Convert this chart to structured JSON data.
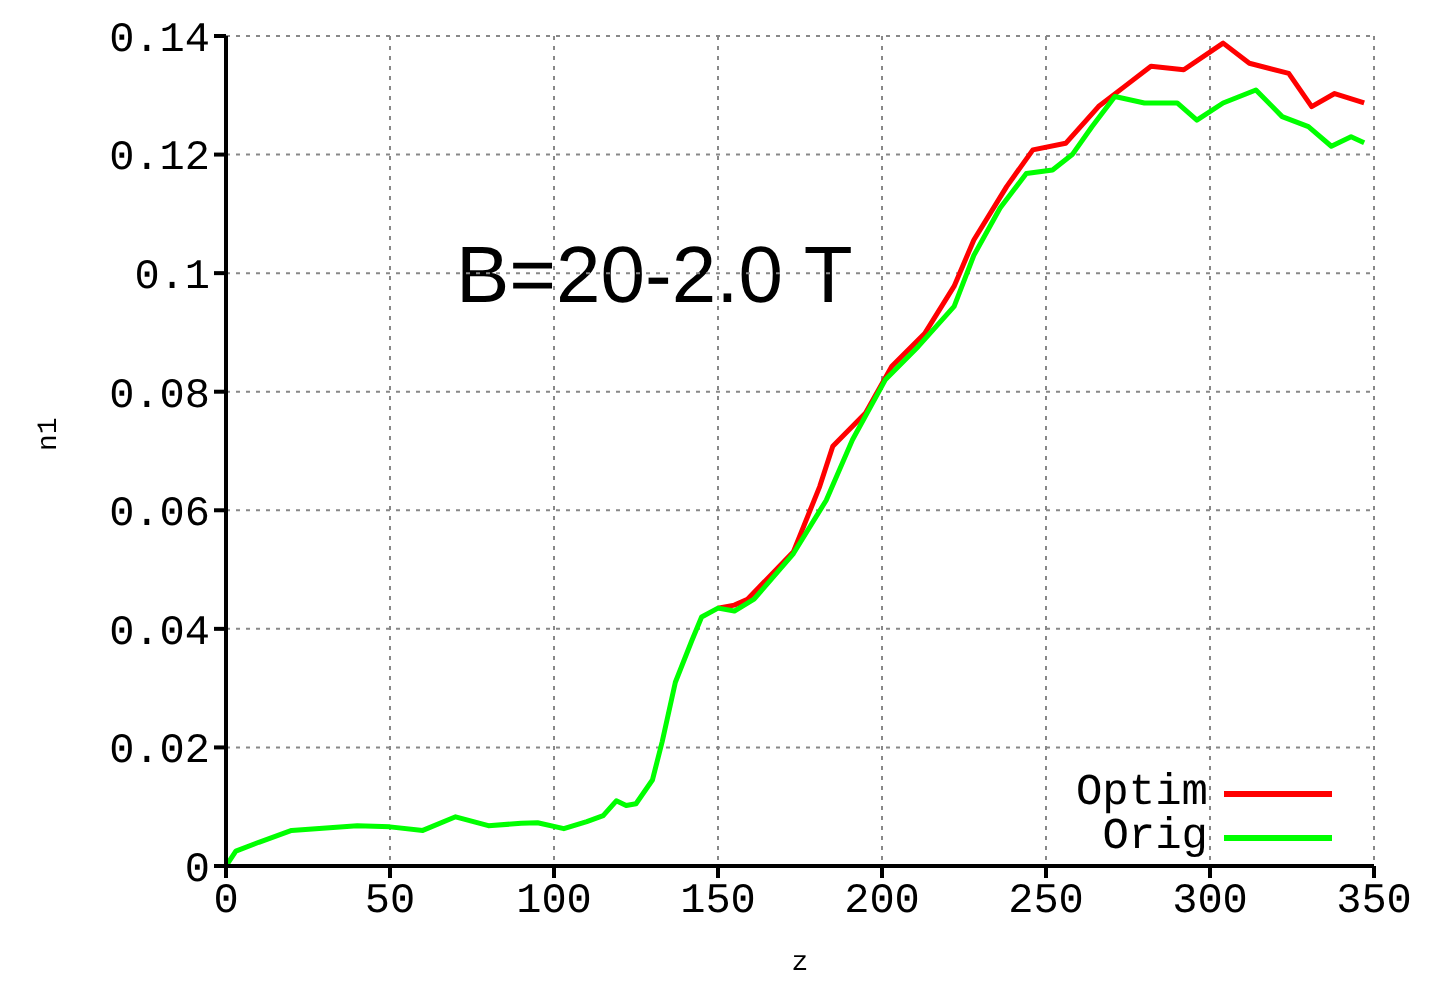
{
  "chart_data": {
    "type": "line",
    "xlabel": "z",
    "ylabel": "n1",
    "annotations": [
      "B=20-2.0 T"
    ],
    "xlim": [
      0,
      350
    ],
    "xticks": [
      0,
      50,
      100,
      150,
      200,
      250,
      300,
      350
    ],
    "ylim": [
      0,
      0.14
    ],
    "yticks": [
      0,
      0.02,
      0.04,
      0.06,
      0.08,
      0.1,
      0.12,
      0.14
    ],
    "grid": true,
    "legend": "bottom right",
    "marker": "none",
    "line_style": "solid",
    "series": [
      {
        "name": "Optim",
        "color": "#ff0000",
        "x": [
          150,
          155,
          159,
          173,
          181,
          185,
          195,
          203,
          213,
          222,
          228,
          238,
          246,
          256,
          266,
          274,
          282,
          292,
          304,
          312,
          324,
          331,
          338,
          347
        ],
        "values": [
          0.0435,
          0.044,
          0.045,
          0.053,
          0.064,
          0.0708,
          0.0764,
          0.0843,
          0.0898,
          0.0978,
          0.1056,
          0.1146,
          0.1208,
          0.1219,
          0.1281,
          0.1315,
          0.1349,
          0.1343,
          0.1388,
          0.1354,
          0.1337,
          0.1281,
          0.1303,
          0.1287
        ]
      },
      {
        "name": "Orig",
        "color": "#00ff00",
        "x": [
          0,
          3,
          10,
          20,
          40,
          50,
          60,
          70,
          80,
          90,
          95,
          103,
          110,
          115,
          119,
          122,
          125,
          130,
          133,
          137,
          142,
          145,
          150,
          155,
          161,
          173,
          183,
          191,
          201,
          211,
          222,
          228,
          236,
          244,
          252,
          258,
          264,
          271,
          280,
          290,
          296,
          304,
          314,
          322,
          330,
          337,
          343,
          347
        ],
        "values": [
          0,
          0.0025,
          0.004,
          0.006,
          0.0068,
          0.0066,
          0.006,
          0.0083,
          0.0068,
          0.0072,
          0.0073,
          0.0063,
          0.0075,
          0.0085,
          0.011,
          0.0102,
          0.0105,
          0.0145,
          0.021,
          0.031,
          0.038,
          0.042,
          0.0435,
          0.043,
          0.045,
          0.0527,
          0.0617,
          0.0719,
          0.082,
          0.0876,
          0.0944,
          0.103,
          0.111,
          0.1168,
          0.1174,
          0.12,
          0.1247,
          0.1298,
          0.1287,
          0.1287,
          0.1258,
          0.1287,
          0.1309,
          0.1264,
          0.1247,
          0.1214,
          0.123,
          0.122
        ]
      }
    ]
  }
}
